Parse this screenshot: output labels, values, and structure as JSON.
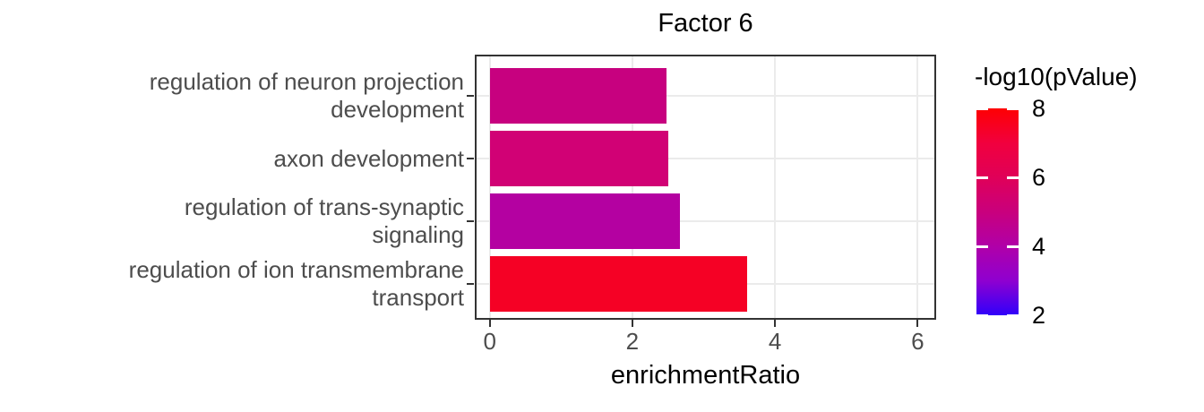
{
  "chart_data": {
    "type": "bar",
    "orientation": "horizontal",
    "title": "Factor 6",
    "xlabel": "enrichmentRatio",
    "ylabel": "",
    "categories": [
      "regulation of neuron projection development",
      "axon development",
      "regulation of trans-synaptic signaling",
      "regulation of ion transmembrane transport"
    ],
    "category_lines": [
      [
        "regulation of neuron projection",
        "development"
      ],
      [
        "axon development"
      ],
      [
        "regulation of trans-synaptic",
        "signaling"
      ],
      [
        "regulation of ion transmembrane",
        "transport"
      ]
    ],
    "values": [
      2.48,
      2.5,
      2.67,
      3.61
    ],
    "bar_colors": [
      "#C7017F",
      "#D10175",
      "#B401A1",
      "#F50125"
    ],
    "x_ticks": [
      0,
      2,
      4,
      6
    ],
    "xlim": [
      -0.21,
      6.26
    ],
    "grid": "major-only",
    "gridline_color": "#EBEBEB",
    "axis_text_color": "#4D4D4D",
    "axis_line_color": "#333333",
    "legend": {
      "title": "-log10(pValue)",
      "position": "right",
      "type": "colorbar",
      "ticks": [
        8,
        6,
        4,
        2
      ],
      "range": [
        2,
        8
      ],
      "gradient_stops": [
        {
          "value": 8,
          "color": "#FE0003"
        },
        {
          "value": 7,
          "color": "#F1003E"
        },
        {
          "value": 6,
          "color": "#E00058"
        },
        {
          "value": 5,
          "color": "#C9007D"
        },
        {
          "value": 4,
          "color": "#B000A8"
        },
        {
          "value": 3,
          "color": "#8F00D0"
        },
        {
          "value": 2,
          "color": "#3000FA"
        }
      ]
    }
  }
}
